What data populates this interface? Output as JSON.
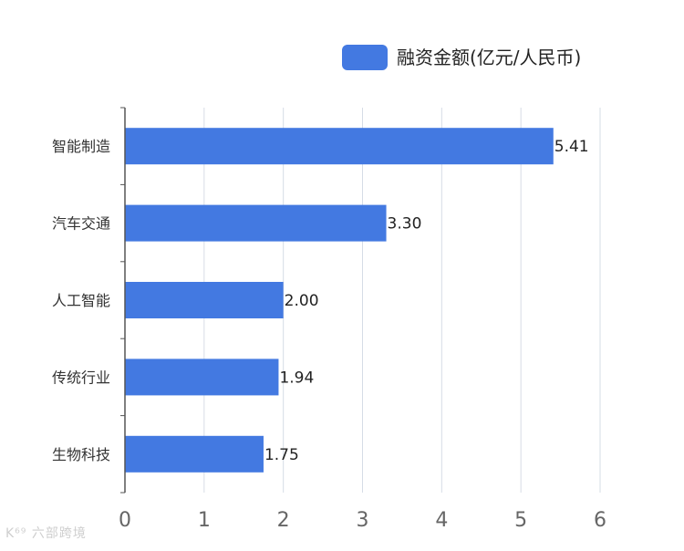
{
  "chart_data": {
    "type": "bar",
    "orientation": "horizontal",
    "categories": [
      "智能制造",
      "汽车交通",
      "人工智能",
      "传统行业",
      "生物科技"
    ],
    "series": [
      {
        "name": "融资金额(亿元/人民币)",
        "values": [
          5.41,
          3.3,
          2.0,
          1.94,
          1.75
        ],
        "value_labels": [
          "5.41",
          "3.30",
          "2.00",
          "1.94",
          "1.75"
        ]
      }
    ],
    "xlim": [
      0,
      6
    ],
    "x_ticks": [
      0,
      1,
      2,
      3,
      4,
      5,
      6
    ],
    "grid": "vertical",
    "legend_position": "top-right",
    "title": "",
    "xlabel": "",
    "ylabel": ""
  },
  "colors": {
    "bar": "#4379E1",
    "grid": "#D6DCE6",
    "axis": "#555555",
    "tick_label": "#666666",
    "category_label": "#333333",
    "value_label": "#222222"
  },
  "watermark": "K⁶⁹ 六部跨境"
}
